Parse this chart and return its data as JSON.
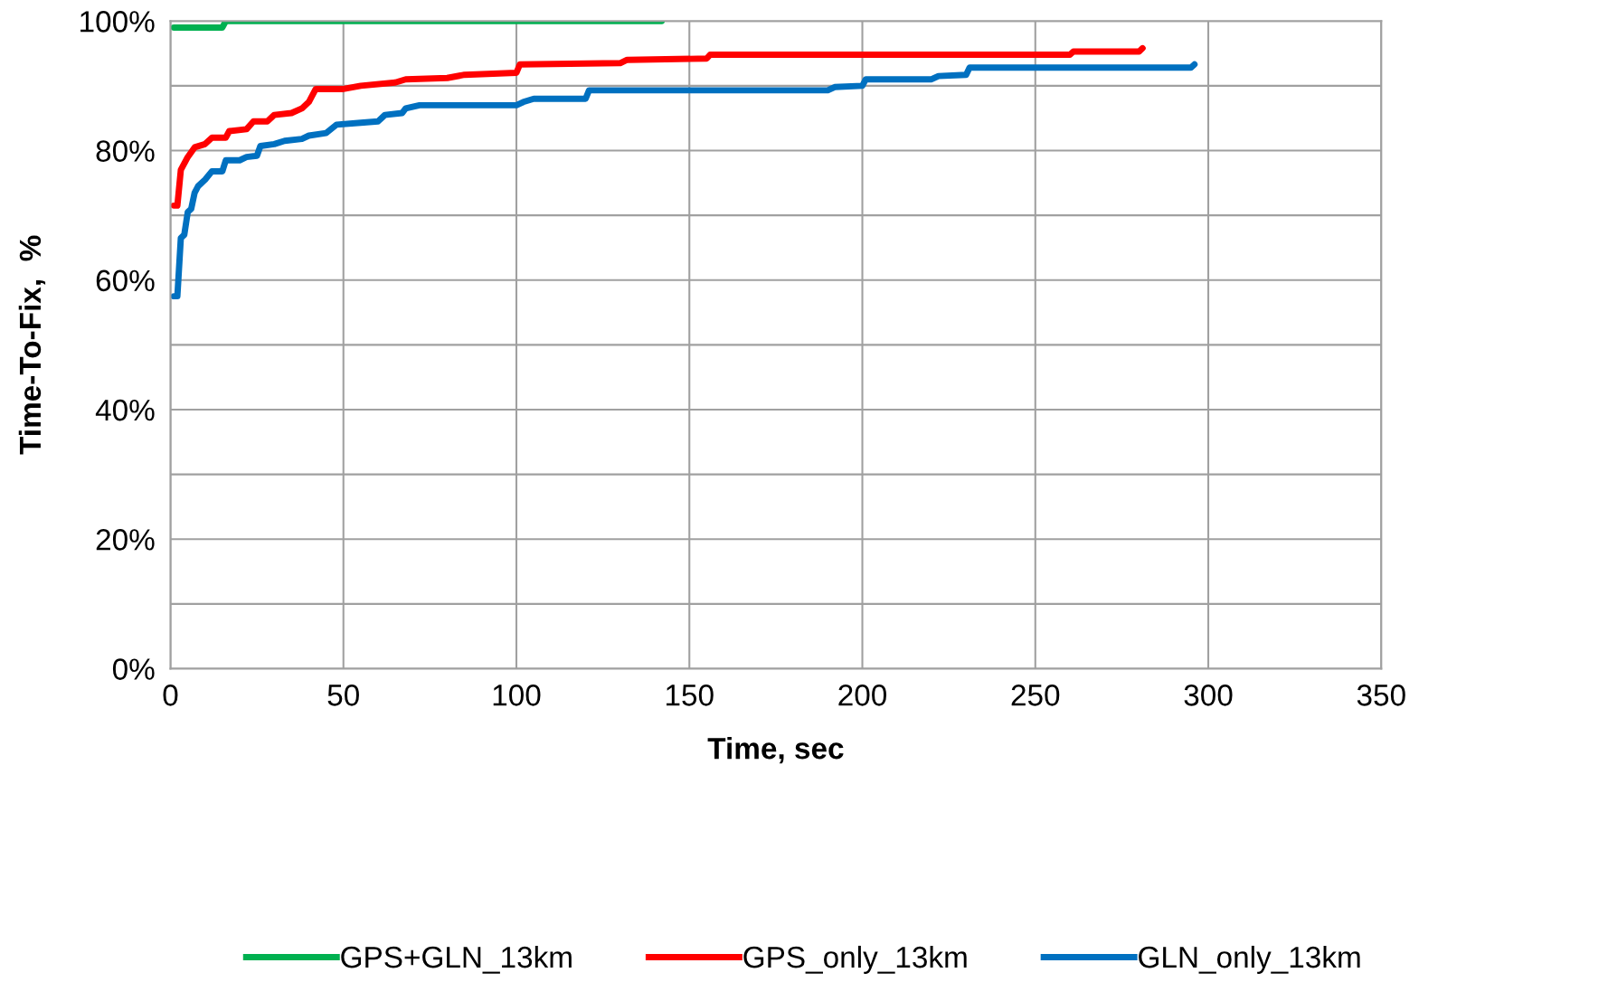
{
  "chart_data": {
    "type": "line",
    "xlabel": "Time, sec",
    "ylabel": "Time-To-Fix,  %",
    "xlim": [
      0,
      350
    ],
    "xticks": [
      0,
      50,
      100,
      150,
      200,
      250,
      300,
      350
    ],
    "ylim": [
      0,
      100
    ],
    "yticks": [
      {
        "value": 0,
        "label": "0%"
      },
      {
        "value": 10,
        "label": null
      },
      {
        "value": 20,
        "label": "20%"
      },
      {
        "value": 30,
        "label": null
      },
      {
        "value": 40,
        "label": "40%"
      },
      {
        "value": 50,
        "label": null
      },
      {
        "value": 60,
        "label": "60%"
      },
      {
        "value": 70,
        "label": null
      },
      {
        "value": 80,
        "label": "80%"
      },
      {
        "value": 90,
        "label": null
      },
      {
        "value": 100,
        "label": "100%"
      }
    ],
    "grid": true,
    "legend": "bottom",
    "line_style": "solid",
    "marker": "none",
    "series": [
      {
        "name": "GPS+GLN_13km",
        "color": "#00b050",
        "x": [
          1,
          15,
          16,
          142
        ],
        "values": [
          99,
          99,
          100,
          100
        ]
      },
      {
        "name": "GPS_only_13km",
        "color": "#ff0000",
        "x": [
          1,
          2,
          3,
          5,
          7,
          10,
          12,
          16,
          17,
          22,
          24,
          28,
          30,
          35,
          38,
          40,
          42,
          50,
          55,
          65,
          68,
          80,
          85,
          100,
          101,
          130,
          132,
          155,
          156,
          260,
          261,
          280,
          281
        ],
        "values": [
          71.5,
          71.5,
          77,
          79,
          80.5,
          81,
          82,
          82,
          83,
          83.3,
          84.5,
          84.5,
          85.5,
          85.8,
          86.5,
          87.5,
          89.5,
          89.5,
          90,
          90.5,
          91,
          91.2,
          91.7,
          92,
          93.3,
          93.5,
          94,
          94.2,
          94.8,
          94.8,
          95.3,
          95.3,
          95.8
        ]
      },
      {
        "name": "GLN_only_13km",
        "color": "#0070c0",
        "x": [
          1,
          2,
          3,
          4,
          5,
          6,
          7,
          8,
          10,
          12,
          15,
          16,
          20,
          22,
          25,
          26,
          30,
          33,
          38,
          40,
          45,
          48,
          55,
          60,
          62,
          67,
          68,
          72,
          100,
          102,
          105,
          120,
          121,
          190,
          192,
          200,
          201,
          220,
          222,
          230,
          231,
          295,
          296
        ],
        "values": [
          57.5,
          57.5,
          66.5,
          67,
          70.5,
          71,
          73.5,
          74.5,
          75.5,
          76.8,
          76.8,
          78.5,
          78.5,
          79,
          79.2,
          80.7,
          81,
          81.5,
          81.8,
          82.3,
          82.7,
          84,
          84.3,
          84.5,
          85.5,
          85.8,
          86.5,
          87,
          87,
          87.5,
          88,
          88,
          89.3,
          89.3,
          89.8,
          90,
          91,
          91,
          91.5,
          91.7,
          92.8,
          92.8,
          93.3
        ]
      }
    ]
  }
}
